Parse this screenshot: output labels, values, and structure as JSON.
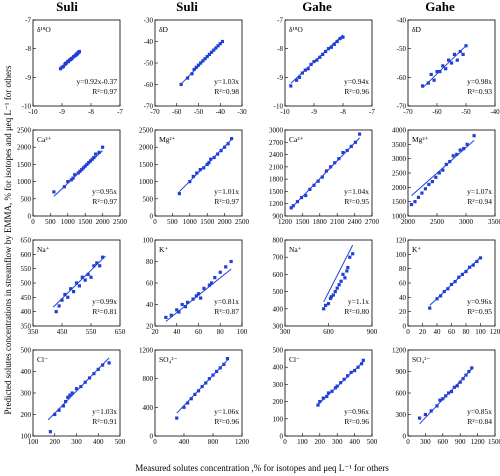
{
  "figure": {
    "column_headers": [
      "Suli",
      "Suli",
      "Gahe",
      "Gahe"
    ],
    "ylabel": "Predicted solutes concentrations in streamflow by EMMA, % for isotopes and μeq L⁻¹ for others",
    "xlabel": "Measured solutes concentration ,% for isotopes and μeq L⁻¹ for others",
    "marker_color": "#1f3fd6",
    "line_color": "#1f3fd6"
  },
  "chart_data": [
    {
      "type": "scatter",
      "label": "δ¹⁸O",
      "eq": "y=0.92x-0.37",
      "r2": "R²=0.97",
      "xlim": [
        -10,
        -7
      ],
      "ylim": [
        -10,
        -7
      ],
      "xticks": [
        "-10",
        "-9",
        "-8",
        "-7"
      ],
      "yticks": [
        "-10",
        "-9",
        "-8",
        "-7"
      ],
      "slope": 0.92,
      "intercept": -0.37,
      "fit_x": [
        -9.05,
        -8.4
      ],
      "x": [
        -9.05,
        -9.0,
        -8.95,
        -8.9,
        -8.88,
        -8.85,
        -8.8,
        -8.78,
        -8.75,
        -8.7,
        -8.68,
        -8.65,
        -8.6,
        -8.55,
        -8.52,
        -8.5,
        -8.48,
        -8.45,
        -8.42,
        -8.4
      ],
      "y": [
        -8.7,
        -8.65,
        -8.62,
        -8.55,
        -8.52,
        -8.5,
        -8.45,
        -8.45,
        -8.4,
        -8.38,
        -8.35,
        -8.33,
        -8.28,
        -8.25,
        -8.22,
        -8.2,
        -8.18,
        -8.15,
        -8.12,
        -8.1
      ]
    },
    {
      "type": "scatter",
      "label": "δD",
      "eq": "y=1.03x",
      "r2": "R²=0.98",
      "xlim": [
        -70,
        -30
      ],
      "ylim": [
        -70,
        -30
      ],
      "xticks": [
        "-70",
        "-60",
        "-50",
        "-40",
        "-30"
      ],
      "yticks": [
        "-70",
        "-60",
        "-50",
        "-40",
        "-30"
      ],
      "slope": 1.03,
      "intercept": 0,
      "fit_x": [
        -58,
        -39
      ],
      "x": [
        -58,
        -55,
        -53,
        -52,
        -51,
        -50,
        -49,
        -48,
        -47,
        -46,
        -45,
        -44,
        -43,
        -42,
        -41,
        -40,
        -39
      ],
      "y": [
        -60,
        -57,
        -55,
        -53,
        -52,
        -51,
        -50,
        -49,
        -48,
        -47,
        -46,
        -45,
        -44,
        -43,
        -42,
        -41,
        -40
      ]
    },
    {
      "type": "scatter",
      "label": "δ¹⁸O",
      "eq": "y=0.94x",
      "r2": "R²=0.96",
      "xlim": [
        -10,
        -7
      ],
      "ylim": [
        -10,
        -7
      ],
      "xticks": [
        "-10",
        "-9",
        "-8",
        "-7"
      ],
      "yticks": [
        "-10",
        "-9",
        "-8",
        "-7"
      ],
      "slope": 0.94,
      "intercept": 0,
      "fit_x": [
        -9.8,
        -8.0
      ],
      "x": [
        -9.8,
        -9.6,
        -9.5,
        -9.4,
        -9.3,
        -9.2,
        -9.1,
        -9.0,
        -8.9,
        -8.8,
        -8.7,
        -8.6,
        -8.5,
        -8.4,
        -8.3,
        -8.2,
        -8.1,
        -8.0
      ],
      "y": [
        -9.3,
        -9.1,
        -9.0,
        -8.85,
        -8.75,
        -8.7,
        -8.55,
        -8.45,
        -8.4,
        -8.3,
        -8.2,
        -8.1,
        -8.0,
        -7.95,
        -7.85,
        -7.75,
        -7.65,
        -7.6
      ]
    },
    {
      "type": "scatter",
      "label": "δD",
      "eq": "y=0.98x",
      "r2": "R²=0.93",
      "xlim": [
        -70,
        -40
      ],
      "ylim": [
        -70,
        -40
      ],
      "xticks": [
        "-70",
        "-60",
        "-50",
        "-40"
      ],
      "yticks": [
        "-70",
        "-60",
        "-50",
        "-40"
      ],
      "slope": 0.98,
      "intercept": 0,
      "fit_x": [
        -65,
        -50
      ],
      "x": [
        -65,
        -63,
        -62,
        -61,
        -60,
        -59,
        -58,
        -57,
        -56,
        -55,
        -54,
        -53,
        -52,
        -51,
        -50
      ],
      "y": [
        -63,
        -62,
        -59,
        -61,
        -58,
        -58,
        -56,
        -57,
        -54,
        -55,
        -52,
        -54,
        -51,
        -52,
        -49
      ]
    },
    {
      "type": "scatter",
      "label": "Ca²⁺",
      "eq": "y=0.95x",
      "r2": "R²=0.97",
      "xlim": [
        0,
        2500
      ],
      "ylim": [
        0,
        2500
      ],
      "xticks": [
        "0",
        "500",
        "1000",
        "1500",
        "2000",
        "2500"
      ],
      "yticks": [
        "0",
        "500",
        "1000",
        "1500",
        "2000",
        "2500"
      ],
      "slope": 0.95,
      "intercept": 0,
      "fit_x": [
        600,
        2000
      ],
      "x": [
        600,
        900,
        1000,
        1100,
        1150,
        1200,
        1300,
        1350,
        1400,
        1450,
        1500,
        1550,
        1600,
        1650,
        1700,
        1750,
        1800,
        1900,
        2000
      ],
      "y": [
        700,
        850,
        1000,
        1050,
        1100,
        1200,
        1250,
        1300,
        1350,
        1400,
        1450,
        1500,
        1550,
        1600,
        1650,
        1700,
        1800,
        1850,
        2000
      ]
    },
    {
      "type": "scatter",
      "label": "Mg²⁺",
      "eq": "y=1.01x",
      "r2": "R²=0.97",
      "xlim": [
        0,
        2500
      ],
      "ylim": [
        0,
        2500
      ],
      "xticks": [
        "0",
        "500",
        "1000",
        "1500",
        "2000",
        "2500"
      ],
      "yticks": [
        "0",
        "500",
        "1000",
        "1500",
        "2000",
        "2500"
      ],
      "slope": 1.01,
      "intercept": 0,
      "fit_x": [
        700,
        2200
      ],
      "x": [
        700,
        1000,
        1100,
        1200,
        1300,
        1400,
        1500,
        1550,
        1600,
        1700,
        1800,
        1900,
        2000,
        2100,
        2200
      ],
      "y": [
        650,
        1000,
        1150,
        1250,
        1350,
        1400,
        1500,
        1550,
        1650,
        1700,
        1800,
        1900,
        2000,
        2100,
        2250
      ]
    },
    {
      "type": "scatter",
      "label": "Ca²⁺",
      "eq": "y=1.04x",
      "r2": "R²=0.95",
      "xlim": [
        900,
        3000
      ],
      "ylim": [
        900,
        3000
      ],
      "xticks": [
        "1200",
        "1500",
        "1800",
        "2100",
        "2400",
        "2700"
      ],
      "yticks": [
        "900",
        "1200",
        "1500",
        "1800",
        "2100",
        "2400",
        "2700",
        "3000"
      ],
      "slope": 1.04,
      "intercept": 0,
      "fit_x": [
        1050,
        2700
      ],
      "x": [
        1050,
        1100,
        1200,
        1300,
        1400,
        1500,
        1600,
        1700,
        1800,
        1900,
        2000,
        2100,
        2200,
        2300,
        2400,
        2500,
        2600,
        2700
      ],
      "y": [
        1100,
        1150,
        1250,
        1350,
        1400,
        1550,
        1650,
        1750,
        1850,
        2000,
        2100,
        2200,
        2300,
        2450,
        2500,
        2600,
        2700,
        2900
      ]
    },
    {
      "type": "scatter",
      "label": "Mg²⁺",
      "eq": "y=1.07x",
      "r2": "R²=0.94",
      "xlim": [
        1500,
        4000
      ],
      "ylim": [
        1000,
        4000
      ],
      "xticks": [
        "2000",
        "2500",
        "3000",
        "3500"
      ],
      "yticks": [
        "1000",
        "1500",
        "2000",
        "2500",
        "3000",
        "3500",
        "4000"
      ],
      "slope": 1.07,
      "intercept": 0,
      "fit_x": [
        1600,
        3400
      ],
      "x": [
        1600,
        1700,
        1800,
        1900,
        2000,
        2100,
        2200,
        2300,
        2400,
        2500,
        2600,
        2700,
        2800,
        2900,
        3000,
        3100,
        3200,
        3400
      ],
      "y": [
        1400,
        1500,
        1650,
        1800,
        1950,
        2100,
        2200,
        2350,
        2500,
        2600,
        2800,
        2900,
        3100,
        3150,
        3300,
        3350,
        3500,
        3800
      ]
    },
    {
      "type": "scatter",
      "label": "Na⁺",
      "eq": "y=0.99x",
      "r2": "R²=0.81",
      "xlim": [
        350,
        650
      ],
      "ylim": [
        350,
        650
      ],
      "xticks": [
        "350",
        "450",
        "550",
        "650"
      ],
      "yticks": [
        "350",
        "400",
        "450",
        "500",
        "550",
        "600",
        "650"
      ],
      "slope": 0.99,
      "intercept": 0,
      "fit_x": [
        420,
        600
      ],
      "x": [
        430,
        440,
        450,
        460,
        470,
        480,
        490,
        500,
        510,
        520,
        530,
        540,
        550,
        560,
        570,
        580,
        590
      ],
      "y": [
        400,
        420,
        440,
        460,
        450,
        480,
        470,
        500,
        490,
        520,
        510,
        530,
        520,
        560,
        570,
        560,
        590
      ]
    },
    {
      "type": "scatter",
      "label": "K⁺",
      "eq": "y=0.81x",
      "r2": "R²=0.87",
      "xlim": [
        20,
        100
      ],
      "ylim": [
        20,
        100
      ],
      "xticks": [
        "20",
        "40",
        "60",
        "80",
        "100"
      ],
      "yticks": [
        "20",
        "40",
        "60",
        "80",
        "100"
      ],
      "slope": 0.81,
      "intercept": 0,
      "fit_x": [
        30,
        90
      ],
      "x": [
        30,
        35,
        40,
        42,
        45,
        48,
        50,
        55,
        58,
        60,
        62,
        65,
        70,
        72,
        75,
        80,
        85,
        90
      ],
      "y": [
        28,
        30,
        35,
        33,
        40,
        38,
        42,
        45,
        48,
        50,
        46,
        55,
        58,
        60,
        65,
        70,
        75,
        80
      ]
    },
    {
      "type": "scatter",
      "label": "Na⁺",
      "eq": "y=1.1x",
      "r2": "R²=0.80",
      "xlim": [
        0,
        900
      ],
      "ylim": [
        300,
        800
      ],
      "xticks": [
        "300",
        "600",
        "900"
      ],
      "yticks": [
        "300",
        "400",
        "500",
        "600",
        "700",
        "800"
      ],
      "slope": 1.1,
      "intercept": 0,
      "fit_x": [
        400,
        700
      ],
      "x": [
        400,
        420,
        450,
        470,
        480,
        500,
        520,
        540,
        560,
        580,
        600,
        620,
        640,
        650,
        670,
        700
      ],
      "y": [
        400,
        420,
        430,
        460,
        470,
        480,
        500,
        520,
        540,
        560,
        600,
        580,
        620,
        640,
        700,
        720
      ]
    },
    {
      "type": "scatter",
      "label": "K⁺",
      "eq": "y=0.96x",
      "r2": "R²=0.95",
      "xlim": [
        0,
        120
      ],
      "ylim": [
        0,
        120
      ],
      "xticks": [
        "0",
        "20",
        "40",
        "60",
        "80",
        "100",
        "120"
      ],
      "yticks": [
        "0",
        "20",
        "40",
        "60",
        "80",
        "100",
        "120"
      ],
      "slope": 0.96,
      "intercept": 0,
      "fit_x": [
        30,
        100
      ],
      "x": [
        30,
        40,
        45,
        50,
        55,
        60,
        65,
        70,
        75,
        80,
        85,
        90,
        95,
        100
      ],
      "y": [
        25,
        38,
        42,
        48,
        52,
        58,
        62,
        68,
        72,
        76,
        82,
        85,
        90,
        95
      ]
    },
    {
      "type": "scatter",
      "label": "Cl⁻",
      "eq": "y=1.03x",
      "r2": "R²=0.91",
      "xlim": [
        100,
        500
      ],
      "ylim": [
        100,
        500
      ],
      "xticks": [
        "100",
        "200",
        "300",
        "400",
        "500"
      ],
      "yticks": [
        "100",
        "200",
        "300",
        "400",
        "500"
      ],
      "slope": 1.03,
      "intercept": 0,
      "fit_x": [
        170,
        450
      ],
      "x": [
        180,
        200,
        220,
        240,
        250,
        260,
        270,
        280,
        300,
        320,
        340,
        360,
        380,
        400,
        420,
        450
      ],
      "y": [
        120,
        200,
        220,
        240,
        260,
        280,
        290,
        300,
        320,
        330,
        350,
        370,
        390,
        410,
        430,
        440
      ]
    },
    {
      "type": "scatter",
      "label": "SO₄²⁻",
      "eq": "y=1.06x",
      "r2": "R²=0.96",
      "xlim": [
        0,
        1200
      ],
      "ylim": [
        0,
        1200
      ],
      "xticks": [
        "0",
        "400",
        "800",
        "1200"
      ],
      "yticks": [
        "0",
        "400",
        "800",
        "1200"
      ],
      "slope": 1.06,
      "intercept": 0,
      "fit_x": [
        300,
        1000
      ],
      "x": [
        300,
        400,
        450,
        500,
        550,
        600,
        650,
        700,
        750,
        800,
        850,
        900,
        950,
        1000
      ],
      "y": [
        250,
        400,
        460,
        520,
        580,
        630,
        690,
        740,
        800,
        850,
        900,
        950,
        1000,
        1080
      ]
    },
    {
      "type": "scatter",
      "label": "Cl⁻",
      "eq": "y=0.96x",
      "r2": "R²=0.96",
      "xlim": [
        0,
        500
      ],
      "ylim": [
        0,
        500
      ],
      "xticks": [
        "0",
        "100",
        "200",
        "300",
        "400",
        "500"
      ],
      "yticks": [
        "0",
        "100",
        "200",
        "300",
        "400",
        "500"
      ],
      "slope": 0.96,
      "intercept": 0,
      "fit_x": [
        180,
        450
      ],
      "x": [
        190,
        200,
        220,
        240,
        250,
        270,
        290,
        300,
        320,
        340,
        360,
        380,
        400,
        420,
        440,
        450
      ],
      "y": [
        180,
        200,
        220,
        230,
        250,
        260,
        280,
        290,
        310,
        330,
        350,
        370,
        380,
        400,
        420,
        440
      ]
    },
    {
      "type": "scatter",
      "label": "SO₄²⁻",
      "eq": "y=0.85x",
      "r2": "R²=0.84",
      "xlim": [
        0,
        1500
      ],
      "ylim": [
        0,
        1200
      ],
      "xticks": [
        "0",
        "300",
        "600",
        "900",
        "1200",
        "1500"
      ],
      "yticks": [
        "0",
        "300",
        "600",
        "900",
        "1200"
      ],
      "slope": 0.85,
      "intercept": 0,
      "fit_x": [
        200,
        1100
      ],
      "x": [
        200,
        300,
        400,
        500,
        550,
        600,
        650,
        700,
        750,
        800,
        850,
        900,
        950,
        1000,
        1050,
        1100
      ],
      "y": [
        250,
        300,
        350,
        420,
        500,
        520,
        560,
        600,
        620,
        680,
        700,
        750,
        800,
        850,
        900,
        950
      ]
    }
  ]
}
